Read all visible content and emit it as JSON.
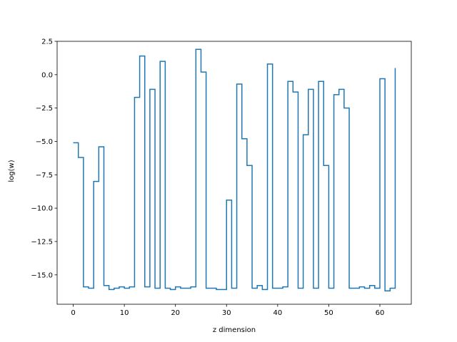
{
  "chart_data": {
    "type": "line",
    "step": "post",
    "title": "",
    "xlabel": "z dimension",
    "ylabel": "log(w)",
    "xlim": [
      -3.15,
      66.15
    ],
    "ylim": [
      -17.2,
      2.5
    ],
    "xticks": [
      0,
      10,
      20,
      30,
      40,
      50,
      60
    ],
    "xtick_labels": [
      "0",
      "10",
      "20",
      "30",
      "40",
      "50",
      "60"
    ],
    "yticks": [
      2.5,
      0.0,
      -2.5,
      -5.0,
      -7.5,
      -10.0,
      -12.5,
      -15.0
    ],
    "ytick_labels": [
      "2.5",
      "0.0",
      "−2.5",
      "−5.0",
      "−7.5",
      "−10.0",
      "−12.5",
      "−15.0"
    ],
    "grid": false,
    "series": [
      {
        "color": "#1f77b4",
        "x": [
          0,
          1,
          2,
          3,
          4,
          5,
          6,
          7,
          8,
          9,
          10,
          11,
          12,
          13,
          14,
          15,
          16,
          17,
          18,
          19,
          20,
          21,
          22,
          23,
          24,
          25,
          26,
          27,
          28,
          29,
          30,
          31,
          32,
          33,
          34,
          35,
          36,
          37,
          38,
          39,
          40,
          41,
          42,
          43,
          44,
          45,
          46,
          47,
          48,
          49,
          50,
          51,
          52,
          53,
          54,
          55,
          56,
          57,
          58,
          59,
          60,
          61,
          62,
          63
        ],
        "y": [
          -5.1,
          -6.2,
          -15.9,
          -16.0,
          -8.0,
          -5.4,
          -15.8,
          -16.1,
          -16.0,
          -15.9,
          -16.0,
          -15.9,
          -1.7,
          1.4,
          -15.9,
          -1.1,
          -16.0,
          1.0,
          -16.0,
          -16.1,
          -15.9,
          -16.0,
          -16.0,
          -15.9,
          1.9,
          0.2,
          -16.0,
          -16.0,
          -16.1,
          -16.1,
          -9.4,
          -16.0,
          -0.7,
          -4.8,
          -6.8,
          -16.0,
          -15.8,
          -16.1,
          0.8,
          -16.0,
          -16.0,
          -15.9,
          -0.5,
          -1.3,
          -16.0,
          -4.5,
          -1.1,
          -16.0,
          -0.5,
          -6.8,
          -16.0,
          -1.5,
          -1.1,
          -2.5,
          -16.0,
          -16.0,
          -15.9,
          -16.0,
          -15.8,
          -16.0,
          -0.3,
          -16.2,
          -16.0,
          0.5
        ]
      }
    ]
  }
}
